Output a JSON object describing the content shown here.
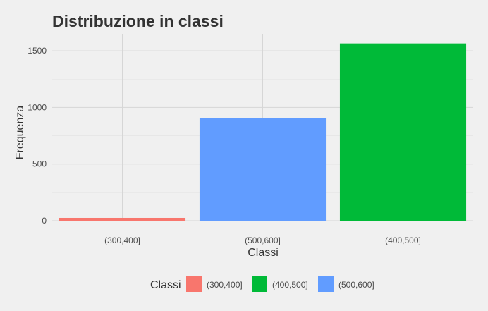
{
  "chart_data": {
    "type": "bar",
    "title": "Distribuzione in classi",
    "xlabel": "Classi",
    "ylabel": "Frequenza",
    "categories": [
      "(300,400]",
      "(500,600]",
      "(400,500]"
    ],
    "values": [
      25,
      905,
      1565
    ],
    "ylim": [
      0,
      1650
    ],
    "yticks": [
      0,
      500,
      1000,
      1500
    ],
    "grid": true,
    "legend": {
      "title": "Classi",
      "position": "bottom",
      "items": [
        {
          "label": "(300,400]",
          "color": "#F8766D"
        },
        {
          "label": "(400,500]",
          "color": "#00BA38"
        },
        {
          "label": "(500,600]",
          "color": "#619CFF"
        }
      ]
    },
    "bar_colors": {
      "(300,400]": "#F8766D",
      "(400,500]": "#00BA38",
      "(500,600]": "#619CFF"
    }
  }
}
